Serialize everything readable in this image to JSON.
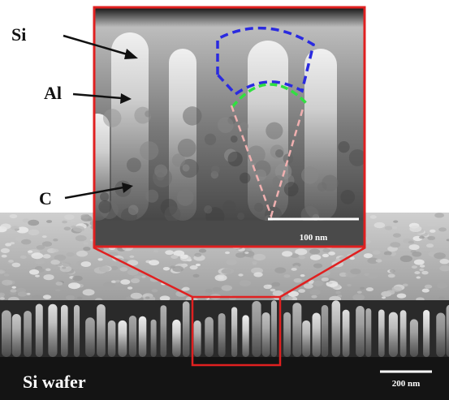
{
  "labels": {
    "si": "Si",
    "al": "Al",
    "c": "C"
  },
  "inset": {
    "scale_bar": "100 nm"
  },
  "image": {
    "substrate": "Si wafer",
    "scale_bar": "200 nm"
  }
}
